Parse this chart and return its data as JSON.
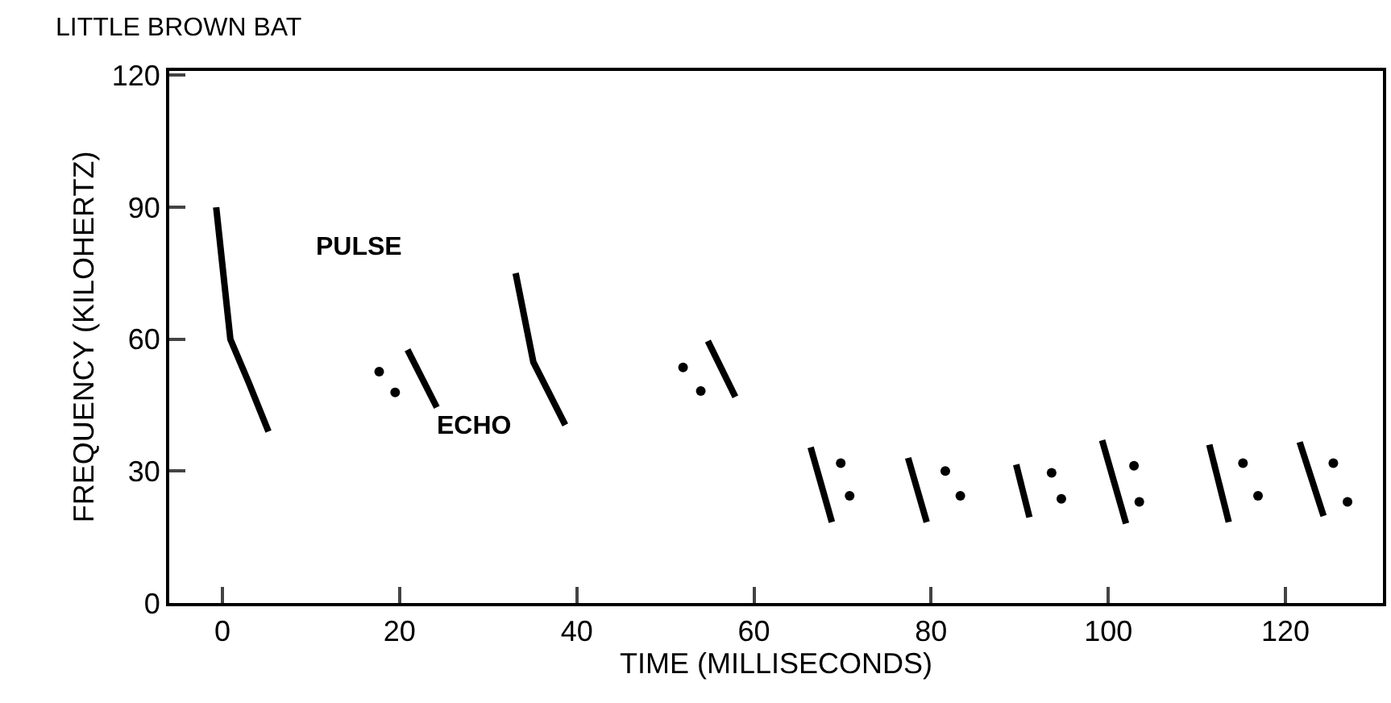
{
  "chart_data": {
    "type": "line",
    "title": "LITTLE BROWN BAT",
    "xlabel": "TIME (MILLISECONDS)",
    "ylabel": "FREQUENCY (KILOHERTZ)",
    "xlim": [
      -6,
      131
    ],
    "xticks": [
      0,
      20,
      40,
      60,
      80,
      100,
      120
    ],
    "ylim": [
      0,
      121
    ],
    "yticks": [
      0,
      30,
      60,
      90,
      120
    ],
    "annotations": [
      "PULSE",
      "ECHO"
    ],
    "series": [
      {
        "color": "#000000",
        "x": [
          -0.7,
          0.9,
          3,
          5.2
        ],
        "values": [
          90,
          60,
          50,
          39
        ]
      },
      {
        "color": "#000000",
        "x": [
          20.9,
          24.2
        ],
        "values": [
          57.6,
          44.5
        ]
      },
      {
        "color": "#000000",
        "x": [
          33.1,
          35.1,
          38.7
        ],
        "values": [
          75,
          54.8,
          40.5
        ]
      },
      {
        "color": "#000000",
        "x": [
          54.8,
          57.9
        ],
        "values": [
          59.6,
          46.9
        ]
      },
      {
        "color": "#000000",
        "x": [
          66.4,
          68.8
        ],
        "values": [
          35.4,
          18.4
        ]
      },
      {
        "color": "#000000",
        "x": [
          77.4,
          79.5
        ],
        "values": [
          33,
          18.4
        ]
      },
      {
        "color": "#000000",
        "x": [
          89.6,
          91.1
        ],
        "values": [
          31.5,
          19.5
        ]
      },
      {
        "color": "#000000",
        "x": [
          99.3,
          102
        ],
        "values": [
          37,
          18.1
        ]
      },
      {
        "color": "#000000",
        "x": [
          111.4,
          113.6
        ],
        "values": [
          36,
          18.4
        ]
      },
      {
        "color": "#000000",
        "x": [
          121.6,
          124.3
        ],
        "values": [
          36.6,
          19.8
        ]
      },
      {
        "type": "scatter",
        "marker": "circle",
        "color": "#000000",
        "x": [
          17.7,
          19.5,
          52,
          54,
          69.8,
          70.8,
          81.6,
          83.3,
          93.6,
          94.7,
          102.9,
          103.5,
          115.2,
          116.9,
          125.4,
          127
        ],
        "values": [
          52.6,
          47.9,
          53.6,
          48.2,
          31.8,
          24.4,
          30,
          24.4,
          29.6,
          23.7,
          31.2,
          23,
          31.8,
          24.4,
          31.8,
          23
        ]
      }
    ]
  }
}
